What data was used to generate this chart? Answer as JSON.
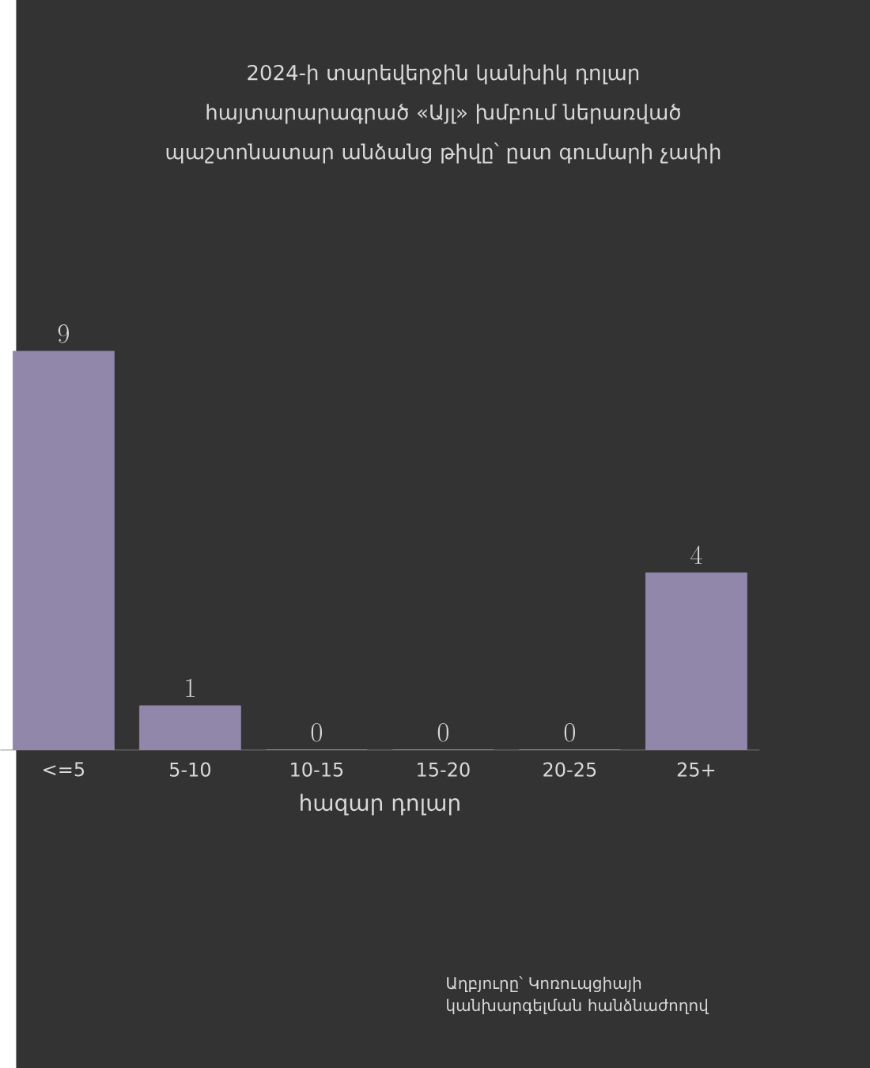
{
  "chart_data": {
    "type": "bar",
    "title": "2024-ի տարեվերջին կանխիկ դոլար հայտարարագրած «Այլ» խմբում ներառված պաշտոնատար անձանց թիվը՝ ըստ գումարի չափի",
    "xlabel": "հազար դոլար",
    "categories": [
      "<=5",
      "5-10",
      "10-15",
      "15-20",
      "20-25",
      "25+"
    ],
    "values": [
      9,
      1,
      0,
      0,
      0,
      4
    ],
    "color": "#9187ab",
    "data_labels": true,
    "annotations": [
      "Աղբյուրը՝ Կոռուպցիայի կանխարգելման հանձնաժողով"
    ]
  }
}
